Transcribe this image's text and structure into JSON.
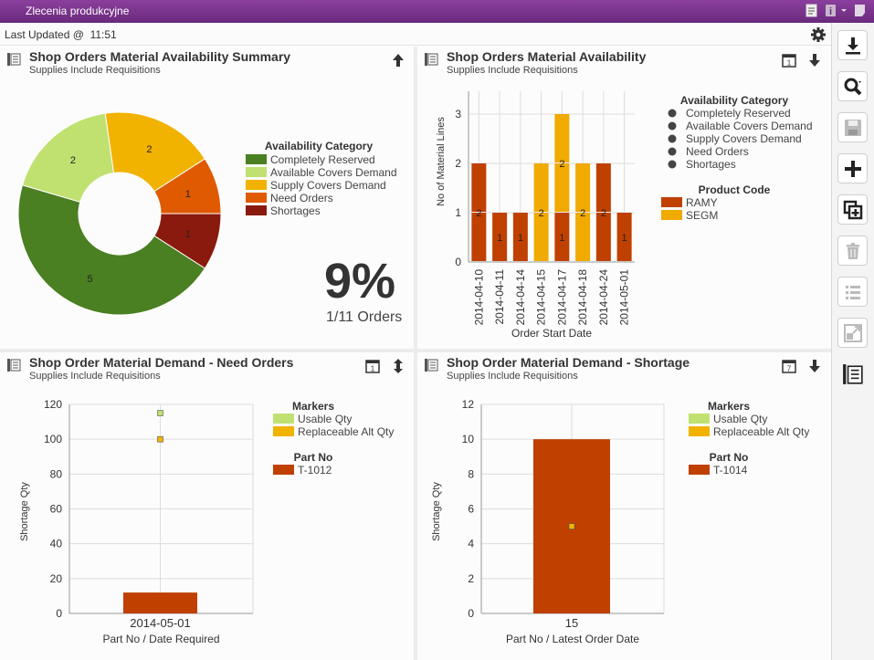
{
  "window": {
    "title": "Zlecenia produkcyjne"
  },
  "status": {
    "last_updated_label": "Last Updated @",
    "last_updated_time": "11:51"
  },
  "panel1": {
    "title": "Shop Orders Material Availability Summary",
    "subtitle": "Supplies Include Requisitions",
    "big_percent": "9%",
    "big_caption": "1/11 Orders"
  },
  "panel2": {
    "title": "Shop Orders Material Availability",
    "subtitle": "Supplies Include Requisitions",
    "legend1_title": "Availability Category",
    "legend2_title": "Product Code"
  },
  "panel3": {
    "title": "Shop Order Material Demand - Need Orders",
    "subtitle": "Supplies Include Requisitions"
  },
  "panel4": {
    "title": "Shop Order Material Demand - Shortage",
    "subtitle": "Supplies Include Requisitions"
  },
  "chart_data": [
    {
      "type": "pie",
      "title": "Availability Category",
      "categories": [
        "Completely Reserved",
        "Available Covers Demand",
        "Supply Covers Demand",
        "Need Orders",
        "Shortages"
      ],
      "values": [
        5,
        2,
        2,
        1,
        1
      ],
      "colors": [
        "#4a7f22",
        "#c0e170",
        "#f2b200",
        "#e05a00",
        "#8b1a0e"
      ]
    },
    {
      "type": "bar",
      "stacked": true,
      "x": [
        "2014-04-10",
        "2014-04-11",
        "2014-04-14",
        "2014-04-15",
        "2014-04-17",
        "2014-04-18",
        "2014-04-24",
        "2014-05-01"
      ],
      "series": [
        {
          "name": "RAMY",
          "color": "#c04000",
          "values": [
            2,
            1,
            1,
            0,
            1,
            0,
            2,
            1
          ]
        },
        {
          "name": "SEGM",
          "color": "#f0aa00",
          "values": [
            0,
            0,
            0,
            2,
            2,
            2,
            0,
            0
          ]
        }
      ],
      "availability_legend": [
        "Completely Reserved",
        "Available Covers Demand",
        "Supply Covers Demand",
        "Need Orders",
        "Shortages"
      ],
      "xlabel": "Order Start Date",
      "ylabel": "No of Material Lines",
      "ylim": [
        0,
        3
      ],
      "yticks": [
        "0",
        "1",
        "2",
        "3"
      ]
    },
    {
      "type": "bar",
      "categories": [
        "2014-05-01"
      ],
      "series": [
        {
          "name": "T-1012",
          "color": "#c04000",
          "values": [
            12
          ]
        }
      ],
      "markers": [
        {
          "name": "Usable Qty",
          "color": "#c0e170",
          "value": 115
        },
        {
          "name": "Replaceable Alt Qty",
          "color": "#f2b200",
          "value": 100
        }
      ],
      "legend_markers_title": "Markers",
      "legend_part_title": "Part No",
      "xlabel": "Part No / Date Required",
      "ylabel": "Shortage Qty",
      "ylim": [
        0,
        120
      ],
      "yticks": [
        "0",
        "20",
        "40",
        "60",
        "80",
        "100",
        "120"
      ]
    },
    {
      "type": "bar",
      "categories": [
        "15"
      ],
      "series": [
        {
          "name": "T-1014",
          "color": "#c04000",
          "values": [
            10
          ]
        }
      ],
      "markers": [
        {
          "name": "Usable Qty",
          "color": "#c0e170",
          "value": 5
        },
        {
          "name": "Replaceable Alt Qty",
          "color": "#f2b200",
          "value": 5
        }
      ],
      "legend_markers_title": "Markers",
      "legend_part_title": "Part No",
      "xlabel": "Part No / Latest Order Date",
      "ylabel": "Shortage Qty",
      "ylim": [
        0,
        12
      ],
      "yticks": [
        "0",
        "2",
        "4",
        "6",
        "8",
        "10",
        "12"
      ]
    }
  ]
}
